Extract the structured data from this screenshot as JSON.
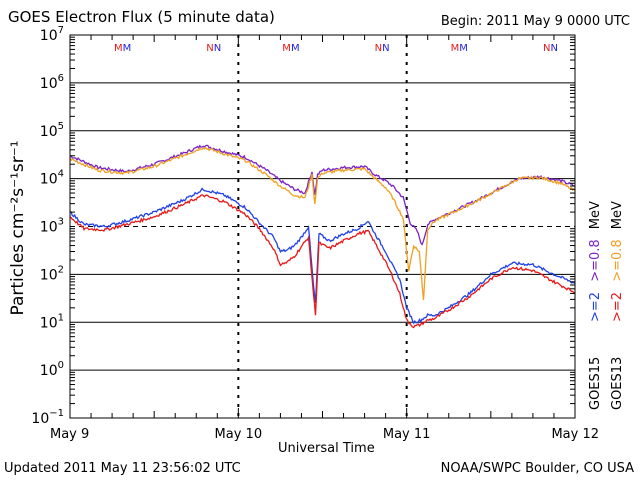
{
  "header": {
    "title": "GOES Electron Flux (5 minute data)",
    "begin": "Begin: 2011 May 9 0000 UTC"
  },
  "footer": {
    "updated": "Updated 2011 May 11 23:56:02 UTC",
    "credit": "NOAA/SWPC Boulder, CO USA"
  },
  "chart_data": {
    "type": "line",
    "title": "GOES Electron Flux (5 minute data)",
    "xlabel": "Universal Time",
    "ylabel": "Particles cm⁻²s⁻¹sr⁻¹",
    "yscale": "log",
    "ylim": [
      0.1,
      10000000
    ],
    "xlim": [
      0,
      72
    ],
    "x_unit": "hours since 2011 May 9 0000 UTC",
    "x_ticks": [
      {
        "hour": 0,
        "label": "May 9"
      },
      {
        "hour": 24,
        "label": "May 10"
      },
      {
        "hour": 48,
        "label": "May 11"
      },
      {
        "hour": 72,
        "label": "May 12"
      }
    ],
    "y_ticks": [
      {
        "exp": 7,
        "value": 10000000
      },
      {
        "exp": 6,
        "value": 1000000
      },
      {
        "exp": 5,
        "value": 100000
      },
      {
        "exp": 4,
        "value": 10000
      },
      {
        "exp": 3,
        "value": 1000
      },
      {
        "exp": 2,
        "value": 100
      },
      {
        "exp": 1,
        "value": 10
      },
      {
        "exp": 0,
        "value": 1
      },
      {
        "exp": -1,
        "value": 0.1
      }
    ],
    "threshold": {
      "value": 1000,
      "style": "dashed"
    },
    "markers": [
      {
        "hour": 7.5,
        "label": "MM",
        "color": "#1e1ee0"
      },
      {
        "hour": 20.5,
        "label": "NN",
        "color": "#1e1ee0"
      },
      {
        "hour": 31.5,
        "label": "MM",
        "color": "#1e1ee0"
      },
      {
        "hour": 44.5,
        "label": "NN",
        "color": "#1e1ee0"
      },
      {
        "hour": 55.5,
        "label": "MM",
        "color": "#1e1ee0"
      },
      {
        "hour": 68.5,
        "label": "NN",
        "color": "#1e1ee0"
      }
    ],
    "series": [
      {
        "name": ">=0.8 MeV GOES15",
        "legend_energy": ">=0.8 MeV",
        "color": "#7a22c8",
        "points": [
          [
            0,
            30000
          ],
          [
            4,
            17000
          ],
          [
            8,
            14000
          ],
          [
            12,
            20000
          ],
          [
            16,
            33000
          ],
          [
            19,
            50000
          ],
          [
            22,
            37000
          ],
          [
            25,
            28000
          ],
          [
            28,
            15000
          ],
          [
            30,
            9000
          ],
          [
            32,
            6000
          ],
          [
            33.5,
            5000
          ],
          [
            34.5,
            14000
          ],
          [
            34.9,
            4500
          ],
          [
            35.3,
            12000
          ],
          [
            36,
            15000
          ],
          [
            39,
            17000
          ],
          [
            42,
            18000
          ],
          [
            43.5,
            12000
          ],
          [
            45,
            9000
          ],
          [
            46,
            7000
          ],
          [
            47.5,
            4000
          ],
          [
            48.5,
            1200
          ],
          [
            49.5,
            800
          ],
          [
            50.2,
            400
          ],
          [
            51,
            1100
          ],
          [
            52,
            1400
          ],
          [
            55,
            2200
          ],
          [
            58,
            3500
          ],
          [
            61,
            6000
          ],
          [
            64,
            10000
          ],
          [
            67,
            11000
          ],
          [
            70,
            9000
          ],
          [
            72,
            7000
          ]
        ]
      },
      {
        "name": ">=0.8 MeV GOES13",
        "legend_energy": ">=0.8 MeV",
        "color": "#f0a020",
        "points": [
          [
            0,
            26000
          ],
          [
            4,
            15000
          ],
          [
            8,
            13000
          ],
          [
            12,
            18000
          ],
          [
            16,
            30000
          ],
          [
            19,
            45000
          ],
          [
            22,
            33000
          ],
          [
            25,
            24000
          ],
          [
            28,
            12000
          ],
          [
            30,
            7000
          ],
          [
            32,
            4500
          ],
          [
            33.5,
            4000
          ],
          [
            34.5,
            12000
          ],
          [
            34.9,
            3000
          ],
          [
            35.3,
            10000
          ],
          [
            36,
            13000
          ],
          [
            39,
            15000
          ],
          [
            42,
            16000
          ],
          [
            43.5,
            10000
          ],
          [
            45,
            6500
          ],
          [
            46,
            4000
          ],
          [
            47.5,
            1500
          ],
          [
            48.3,
            120
          ],
          [
            49,
            400
          ],
          [
            49.8,
            300
          ],
          [
            50.4,
            30
          ],
          [
            51,
            900
          ],
          [
            52,
            1300
          ],
          [
            55,
            2100
          ],
          [
            58,
            3400
          ],
          [
            61,
            5800
          ],
          [
            64,
            10000
          ],
          [
            67,
            10500
          ],
          [
            70,
            8000
          ],
          [
            72,
            5500
          ]
        ]
      },
      {
        "name": ">=2 MeV GOES15",
        "legend_energy": ">=2 MeV",
        "color": "#2040e8",
        "points": [
          [
            0,
            2000
          ],
          [
            2,
            1100
          ],
          [
            5,
            1000
          ],
          [
            8,
            1300
          ],
          [
            12,
            2000
          ],
          [
            16,
            3500
          ],
          [
            19,
            6000
          ],
          [
            22,
            4500
          ],
          [
            25,
            2500
          ],
          [
            27,
            1200
          ],
          [
            29,
            600
          ],
          [
            30,
            300
          ],
          [
            31,
            320
          ],
          [
            32,
            400
          ],
          [
            33,
            600
          ],
          [
            34,
            1000
          ],
          [
            34.7,
            60
          ],
          [
            35,
            25
          ],
          [
            35.5,
            700
          ],
          [
            37,
            500
          ],
          [
            39,
            700
          ],
          [
            41,
            900
          ],
          [
            42.5,
            1300
          ],
          [
            43.5,
            700
          ],
          [
            45,
            300
          ],
          [
            46,
            150
          ],
          [
            47,
            80
          ],
          [
            48,
            20
          ],
          [
            49,
            10
          ],
          [
            50,
            11
          ],
          [
            51,
            14
          ],
          [
            52,
            14
          ],
          [
            54,
            20
          ],
          [
            57,
            40
          ],
          [
            60,
            100
          ],
          [
            63,
            170
          ],
          [
            66,
            160
          ],
          [
            69,
            100
          ],
          [
            72,
            65
          ]
        ]
      },
      {
        "name": ">=2 MeV GOES13",
        "legend_energy": ">=2 MeV",
        "color": "#e81818",
        "points": [
          [
            0,
            1600
          ],
          [
            2,
            900
          ],
          [
            5,
            850
          ],
          [
            8,
            1100
          ],
          [
            12,
            1600
          ],
          [
            16,
            2800
          ],
          [
            19,
            4500
          ],
          [
            22,
            3300
          ],
          [
            25,
            1800
          ],
          [
            27,
            900
          ],
          [
            29,
            350
          ],
          [
            30,
            160
          ],
          [
            31,
            180
          ],
          [
            32,
            240
          ],
          [
            33,
            380
          ],
          [
            34,
            600
          ],
          [
            34.7,
            40
          ],
          [
            35,
            15
          ],
          [
            35.5,
            450
          ],
          [
            37,
            350
          ],
          [
            39,
            500
          ],
          [
            41,
            700
          ],
          [
            42.5,
            800
          ],
          [
            43.5,
            450
          ],
          [
            45,
            180
          ],
          [
            46,
            90
          ],
          [
            47,
            40
          ],
          [
            48,
            11
          ],
          [
            49,
            8
          ],
          [
            50,
            9
          ],
          [
            51,
            11
          ],
          [
            52,
            12
          ],
          [
            54,
            18
          ],
          [
            57,
            35
          ],
          [
            60,
            80
          ],
          [
            63,
            140
          ],
          [
            66,
            120
          ],
          [
            69,
            70
          ],
          [
            72,
            42
          ]
        ]
      }
    ],
    "legend": [
      {
        "text": ">=2",
        "color": "#2040e8",
        "group": "GOES15"
      },
      {
        "text": ">=0.8",
        "color": "#7a22c8",
        "group": "GOES15"
      },
      {
        "text": "MeV",
        "color": "#000000",
        "group": "GOES15"
      },
      {
        "text": ">=2",
        "color": "#e81818",
        "group": "GOES13"
      },
      {
        "text": ">=0.8",
        "color": "#f0a020",
        "group": "GOES13"
      },
      {
        "text": "MeV",
        "color": "#000000",
        "group": "GOES13"
      }
    ],
    "satellites": [
      "GOES15",
      "GOES13"
    ]
  }
}
